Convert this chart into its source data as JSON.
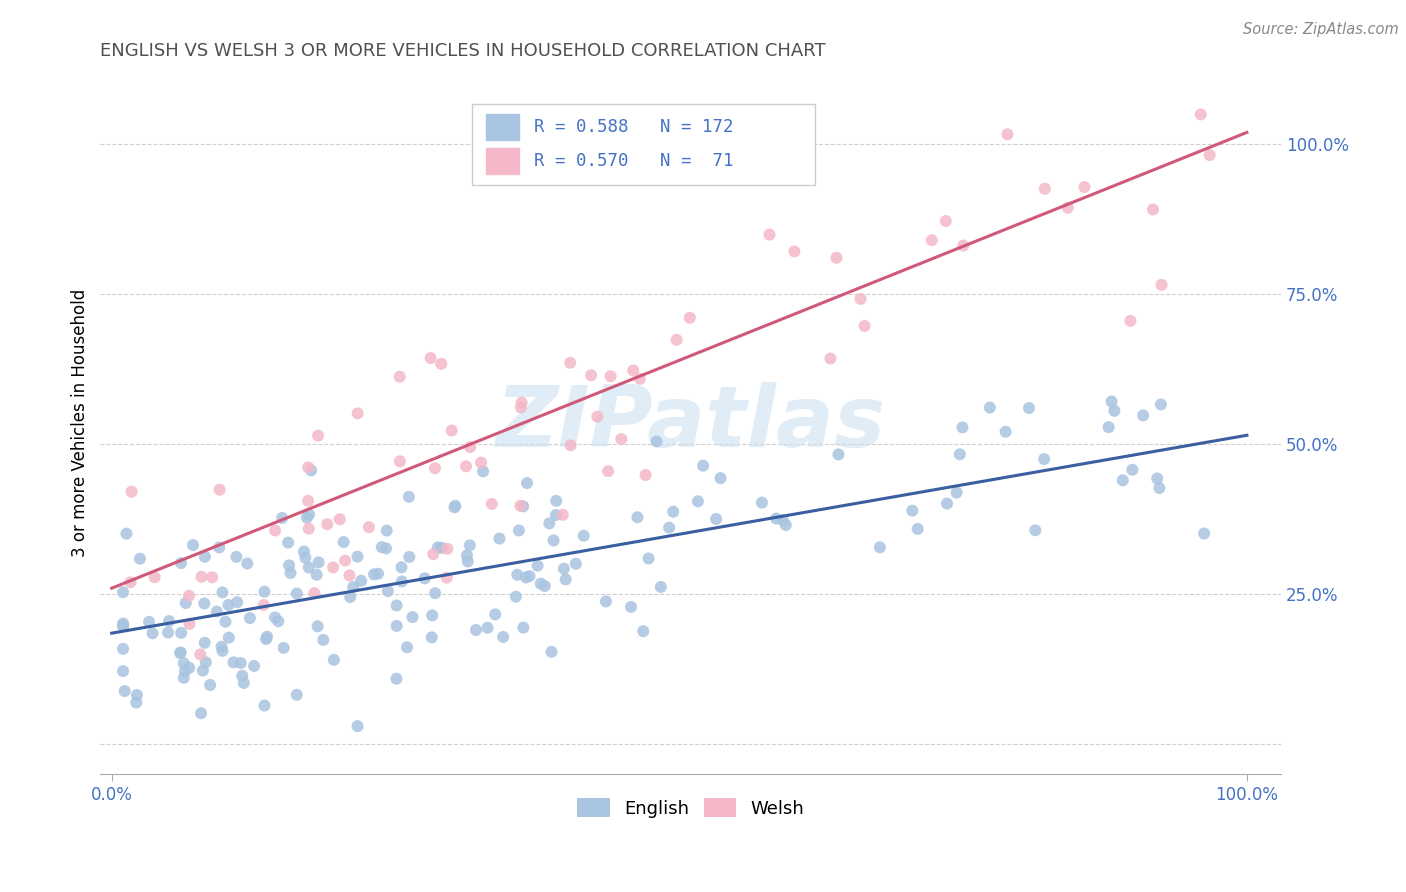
{
  "title": "ENGLISH VS WELSH 3 OR MORE VEHICLES IN HOUSEHOLD CORRELATION CHART",
  "source": "Source: ZipAtlas.com",
  "ylabel": "3 or more Vehicles in Household",
  "english_R": 0.588,
  "english_N": 172,
  "welsh_R": 0.57,
  "welsh_N": 71,
  "english_color": "#a8c4e0",
  "welsh_color": "#f4b8c8",
  "english_line_color": "#3a5fa0",
  "welsh_line_color": "#d05878",
  "background_color": "#ffffff",
  "title_color": "#505050",
  "tick_color": "#4472c4",
  "ylabel_color": "#000000",
  "watermark_color": "#c8ddf0",
  "watermark_text": "ZIPatlas",
  "grid_color": "#d0d0d0",
  "legend_box_color": "#e8e8e8",
  "english_line_intercept": 0.185,
  "english_line_slope": 0.33,
  "welsh_line_intercept": 0.26,
  "welsh_line_slope": 0.76
}
